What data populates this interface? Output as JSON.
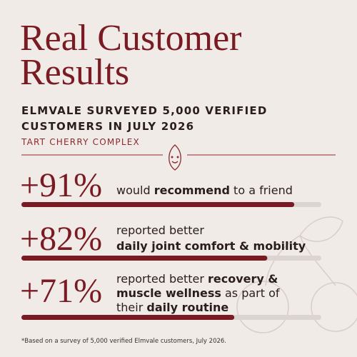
{
  "header": {
    "title_lines": [
      "Real Customer",
      "Results"
    ],
    "subtitle_lines": [
      "ELMVALE SURVEYED 5,000 VERIFIED",
      "CUSTOMERS IN JULY 2026"
    ],
    "product": "TART CHERRY COMPLEX"
  },
  "stats": [
    {
      "value": 91,
      "value_label": "+91%",
      "lines": [
        [
          {
            "text": "would ",
            "bold": false
          },
          {
            "text": "recommend",
            "bold": true
          },
          {
            "text": " to a friend",
            "bold": false
          }
        ]
      ]
    },
    {
      "value": 82,
      "value_label": "+82%",
      "lines": [
        [
          {
            "text": "reported better",
            "bold": false
          }
        ],
        [
          {
            "text": "daily joint comfort & mobility",
            "bold": true
          }
        ]
      ]
    },
    {
      "value": 71,
      "value_label": "+71%",
      "lines": [
        [
          {
            "text": "reported better ",
            "bold": false
          },
          {
            "text": "recovery &",
            "bold": true
          }
        ],
        [
          {
            "text": "muscle wellness",
            "bold": true
          },
          {
            "text": " as part of",
            "bold": false
          }
        ],
        [
          {
            "text": "their ",
            "bold": false
          },
          {
            "text": "daily routine",
            "bold": true
          }
        ]
      ]
    }
  ],
  "footnote": "*Based on a survey of 5,000 verified Elmvale customers, July 2026."
}
